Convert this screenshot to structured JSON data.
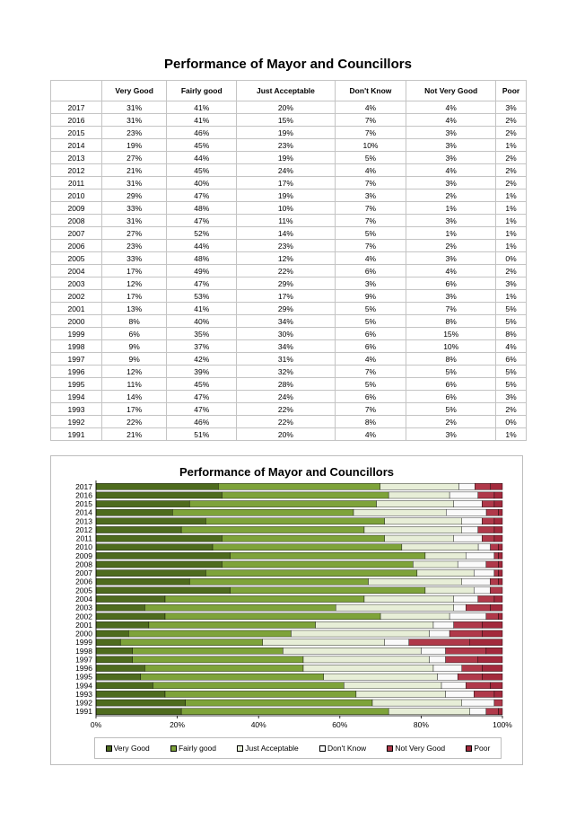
{
  "page": {
    "title": "Performance of Mayor and Councillors"
  },
  "table": {
    "headers": [
      "",
      "Very Good",
      "Fairly good",
      "Just Acceptable",
      "Don't Know",
      "Not Very Good",
      "Poor"
    ],
    "rows": [
      [
        "2017",
        "31%",
        "41%",
        "20%",
        "4%",
        "4%",
        "3%"
      ],
      [
        "2016",
        "31%",
        "41%",
        "15%",
        "7%",
        "4%",
        "2%"
      ],
      [
        "2015",
        "23%",
        "46%",
        "19%",
        "7%",
        "3%",
        "2%"
      ],
      [
        "2014",
        "19%",
        "45%",
        "23%",
        "10%",
        "3%",
        "1%"
      ],
      [
        "2013",
        "27%",
        "44%",
        "19%",
        "5%",
        "3%",
        "2%"
      ],
      [
        "2012",
        "21%",
        "45%",
        "24%",
        "4%",
        "4%",
        "2%"
      ],
      [
        "2011",
        "31%",
        "40%",
        "17%",
        "7%",
        "3%",
        "2%"
      ],
      [
        "2010",
        "29%",
        "47%",
        "19%",
        "3%",
        "2%",
        "1%"
      ],
      [
        "2009",
        "33%",
        "48%",
        "10%",
        "7%",
        "1%",
        "1%"
      ],
      [
        "2008",
        "31%",
        "47%",
        "11%",
        "7%",
        "3%",
        "1%"
      ],
      [
        "2007",
        "27%",
        "52%",
        "14%",
        "5%",
        "1%",
        "1%"
      ],
      [
        "2006",
        "23%",
        "44%",
        "23%",
        "7%",
        "2%",
        "1%"
      ],
      [
        "2005",
        "33%",
        "48%",
        "12%",
        "4%",
        "3%",
        "0%"
      ],
      [
        "2004",
        "17%",
        "49%",
        "22%",
        "6%",
        "4%",
        "2%"
      ],
      [
        "2003",
        "12%",
        "47%",
        "29%",
        "3%",
        "6%",
        "3%"
      ],
      [
        "2002",
        "17%",
        "53%",
        "17%",
        "9%",
        "3%",
        "1%"
      ],
      [
        "2001",
        "13%",
        "41%",
        "29%",
        "5%",
        "7%",
        "5%"
      ],
      [
        "2000",
        "8%",
        "40%",
        "34%",
        "5%",
        "8%",
        "5%"
      ],
      [
        "1999",
        "6%",
        "35%",
        "30%",
        "6%",
        "15%",
        "8%"
      ],
      [
        "1998",
        "9%",
        "37%",
        "34%",
        "6%",
        "10%",
        "4%"
      ],
      [
        "1997",
        "9%",
        "42%",
        "31%",
        "4%",
        "8%",
        "6%"
      ],
      [
        "1996",
        "12%",
        "39%",
        "32%",
        "7%",
        "5%",
        "5%"
      ],
      [
        "1995",
        "11%",
        "45%",
        "28%",
        "5%",
        "6%",
        "5%"
      ],
      [
        "1994",
        "14%",
        "47%",
        "24%",
        "6%",
        "6%",
        "3%"
      ],
      [
        "1993",
        "17%",
        "47%",
        "22%",
        "7%",
        "5%",
        "2%"
      ],
      [
        "1992",
        "22%",
        "46%",
        "22%",
        "8%",
        "2%",
        "0%"
      ],
      [
        "1991",
        "21%",
        "51%",
        "20%",
        "4%",
        "3%",
        "1%"
      ]
    ]
  },
  "chart_data": {
    "type": "bar",
    "orientation": "horizontal",
    "stacked": "percent",
    "title": "Performance of Mayor and Councillors",
    "xlabel": "",
    "ylabel": "",
    "xlim": [
      0,
      100
    ],
    "x_ticks": [
      "0%",
      "20%",
      "40%",
      "60%",
      "80%",
      "100%"
    ],
    "legend_position": "bottom",
    "grid": false,
    "categories": [
      "2017",
      "2016",
      "2015",
      "2014",
      "2013",
      "2012",
      "2011",
      "2010",
      "2009",
      "2008",
      "2007",
      "2006",
      "2005",
      "2004",
      "2003",
      "2002",
      "2001",
      "2000",
      "1999",
      "1998",
      "1997",
      "1996",
      "1995",
      "1994",
      "1993",
      "1992",
      "1991"
    ],
    "series": [
      {
        "name": "Very Good",
        "color": "#4e6b1e",
        "values": [
          31,
          31,
          23,
          19,
          27,
          21,
          31,
          29,
          33,
          31,
          27,
          23,
          33,
          17,
          12,
          17,
          13,
          8,
          6,
          9,
          9,
          12,
          11,
          14,
          17,
          22,
          21
        ]
      },
      {
        "name": "Fairly good",
        "color": "#7ea33a",
        "values": [
          41,
          41,
          46,
          45,
          44,
          45,
          40,
          47,
          48,
          47,
          52,
          44,
          48,
          49,
          47,
          53,
          41,
          40,
          35,
          37,
          42,
          39,
          45,
          47,
          47,
          46,
          51
        ]
      },
      {
        "name": "Just Acceptable",
        "color": "#e7eed7",
        "values": [
          20,
          15,
          19,
          23,
          19,
          24,
          17,
          19,
          10,
          11,
          14,
          23,
          12,
          22,
          29,
          17,
          29,
          34,
          30,
          34,
          31,
          32,
          28,
          24,
          22,
          22,
          20
        ]
      },
      {
        "name": "Don't Know",
        "color": "#fafafa",
        "values": [
          4,
          7,
          7,
          10,
          5,
          4,
          7,
          3,
          7,
          7,
          5,
          7,
          4,
          6,
          3,
          9,
          5,
          5,
          6,
          6,
          4,
          7,
          5,
          6,
          7,
          8,
          4
        ]
      },
      {
        "name": "Not Very Good",
        "color": "#b0394a",
        "values": [
          4,
          4,
          3,
          3,
          3,
          4,
          3,
          2,
          1,
          3,
          1,
          2,
          3,
          4,
          6,
          3,
          7,
          8,
          15,
          10,
          8,
          5,
          6,
          6,
          5,
          2,
          3
        ]
      },
      {
        "name": "Poor",
        "color": "#a3293c",
        "values": [
          3,
          2,
          2,
          1,
          2,
          2,
          2,
          1,
          1,
          1,
          1,
          1,
          0,
          2,
          3,
          1,
          5,
          5,
          8,
          4,
          6,
          5,
          5,
          3,
          2,
          0,
          1
        ]
      }
    ]
  }
}
